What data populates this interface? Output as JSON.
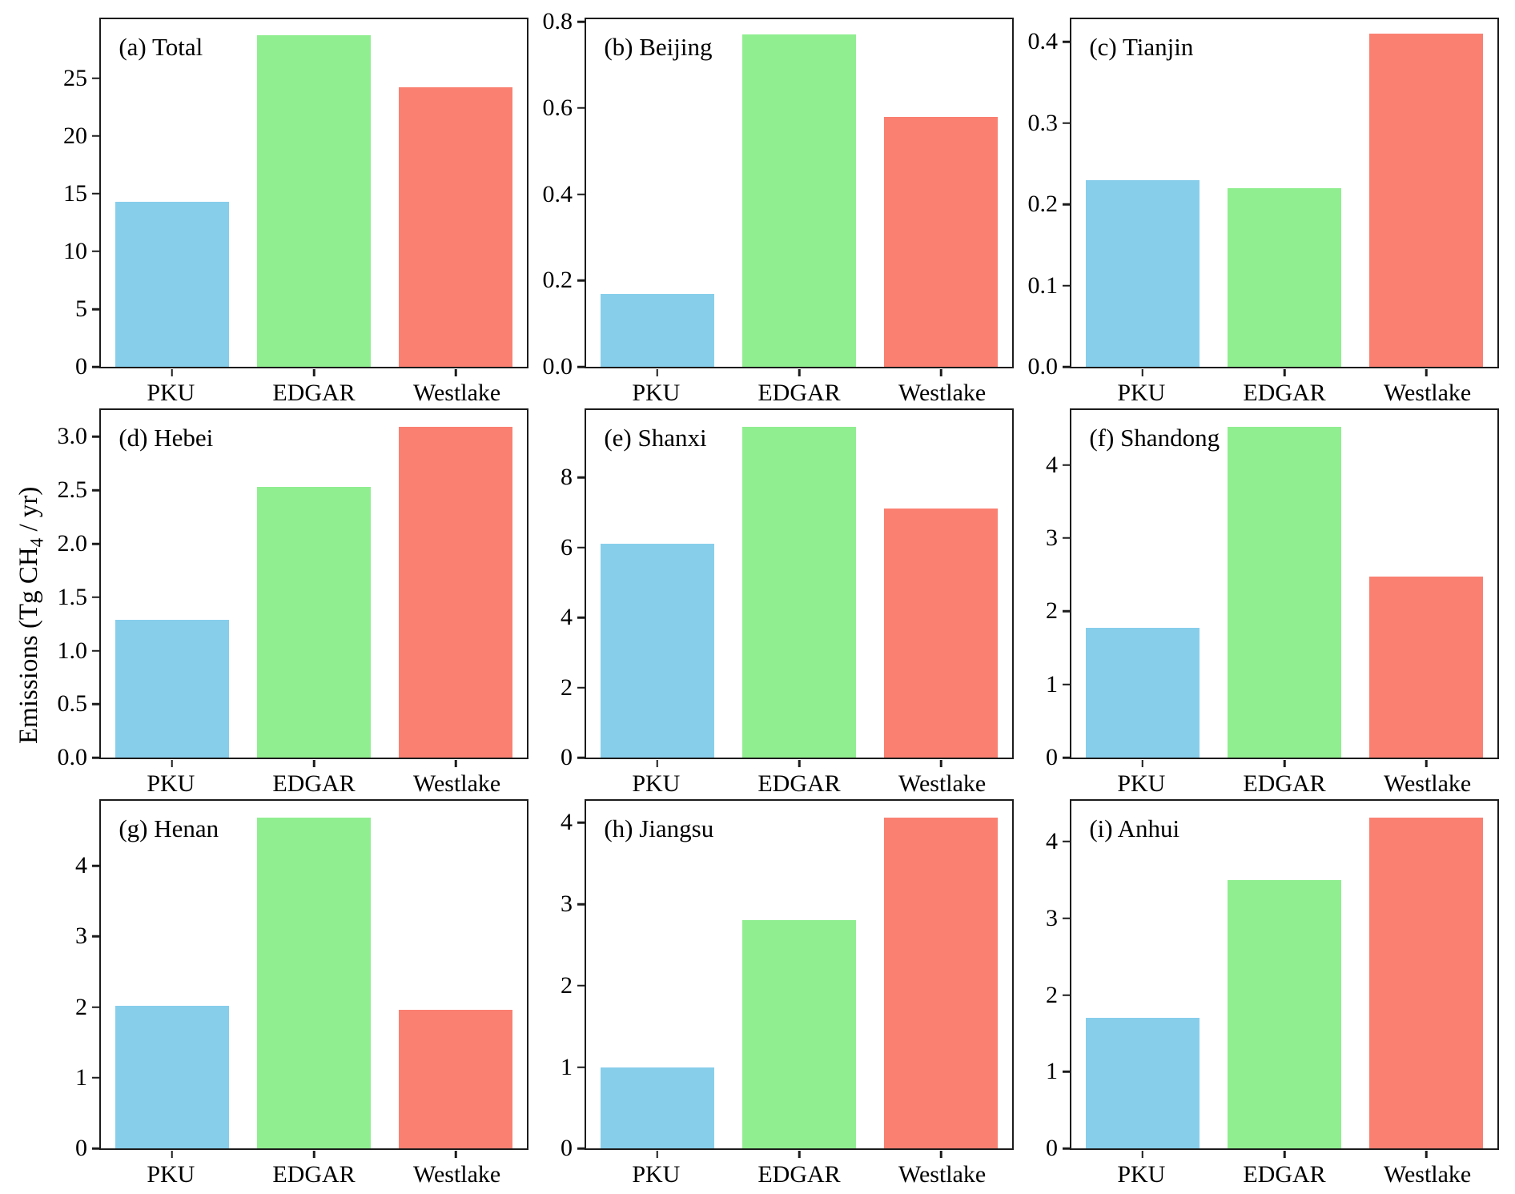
{
  "figure": {
    "ylabel": {
      "prefix": "Emissions (Tg CH",
      "sub": "4",
      "suffix": " / yr)"
    },
    "categories": [
      "PKU",
      "EDGAR",
      "Westlake"
    ],
    "series_colors": [
      "#87CEEB",
      "#90EE90",
      "#FA8072"
    ],
    "axis_color": "#1c1c1c",
    "background_color": "#ffffff"
  },
  "chart_data": [
    {
      "id": "a",
      "type": "bar",
      "label": "(a) Total",
      "region": "Total",
      "categories": [
        "PKU",
        "EDGAR",
        "Westlake"
      ],
      "values": [
        14.3,
        28.7,
        24.2
      ],
      "yticks": [
        0,
        5,
        10,
        15,
        20,
        25
      ],
      "ytick_decimals": 0,
      "ylim": [
        0,
        30.1
      ],
      "grid": false,
      "legend": false
    },
    {
      "id": "b",
      "type": "bar",
      "label": "(b) Beijing",
      "region": "Beijing",
      "categories": [
        "PKU",
        "EDGAR",
        "Westlake"
      ],
      "values": [
        0.17,
        0.77,
        0.58
      ],
      "yticks": [
        0,
        0.2,
        0.4,
        0.6,
        0.8
      ],
      "ytick_decimals": 1,
      "ylim": [
        0,
        0.806
      ],
      "grid": false,
      "legend": false
    },
    {
      "id": "c",
      "type": "bar",
      "label": "(c) Tianjin",
      "region": "Tianjin",
      "categories": [
        "PKU",
        "EDGAR",
        "Westlake"
      ],
      "values": [
        0.23,
        0.22,
        0.41
      ],
      "yticks": [
        0,
        0.1,
        0.2,
        0.3,
        0.4
      ],
      "ytick_decimals": 1,
      "ylim": [
        0,
        0.428
      ],
      "grid": false,
      "legend": false
    },
    {
      "id": "d",
      "type": "bar",
      "label": "(d) Hebei",
      "region": "Hebei",
      "categories": [
        "PKU",
        "EDGAR",
        "Westlake"
      ],
      "values": [
        1.29,
        2.53,
        3.09
      ],
      "yticks": [
        0,
        0.5,
        1,
        1.5,
        2,
        2.5,
        3
      ],
      "ytick_decimals": 1,
      "ylim": [
        0,
        3.25
      ],
      "grid": false,
      "legend": false
    },
    {
      "id": "e",
      "type": "bar",
      "label": "(e) Shanxi",
      "region": "Shanxi",
      "categories": [
        "PKU",
        "EDGAR",
        "Westlake"
      ],
      "values": [
        6.1,
        9.45,
        7.12
      ],
      "yticks": [
        0,
        2,
        4,
        6,
        8
      ],
      "ytick_decimals": 0,
      "ylim": [
        0,
        9.92
      ],
      "grid": false,
      "legend": false
    },
    {
      "id": "f",
      "type": "bar",
      "label": "(f) Shandong",
      "region": "Shandong",
      "categories": [
        "PKU",
        "EDGAR",
        "Westlake"
      ],
      "values": [
        1.78,
        4.52,
        2.48
      ],
      "yticks": [
        0,
        1,
        2,
        3,
        4
      ],
      "ytick_decimals": 0,
      "ylim": [
        0,
        4.75
      ],
      "grid": false,
      "legend": false
    },
    {
      "id": "g",
      "type": "bar",
      "label": "(g) Henan",
      "region": "Henan",
      "categories": [
        "PKU",
        "EDGAR",
        "Westlake"
      ],
      "values": [
        2.02,
        4.68,
        1.96
      ],
      "yticks": [
        0,
        1,
        2,
        3,
        4
      ],
      "ytick_decimals": 0,
      "ylim": [
        0,
        4.92
      ],
      "grid": false,
      "legend": false
    },
    {
      "id": "h",
      "type": "bar",
      "label": "(h) Jiangsu",
      "region": "Jiangsu",
      "categories": [
        "PKU",
        "EDGAR",
        "Westlake"
      ],
      "values": [
        1.0,
        2.8,
        4.06
      ],
      "yticks": [
        0,
        1,
        2,
        3,
        4
      ],
      "ytick_decimals": 0,
      "ylim": [
        0,
        4.27
      ],
      "grid": false,
      "legend": false
    },
    {
      "id": "i",
      "type": "bar",
      "label": "(i) Anhui",
      "region": "Anhui",
      "categories": [
        "PKU",
        "EDGAR",
        "Westlake"
      ],
      "values": [
        1.7,
        3.5,
        4.31
      ],
      "yticks": [
        0,
        1,
        2,
        3,
        4
      ],
      "ytick_decimals": 0,
      "ylim": [
        0,
        4.53
      ],
      "grid": false,
      "legend": false
    }
  ]
}
